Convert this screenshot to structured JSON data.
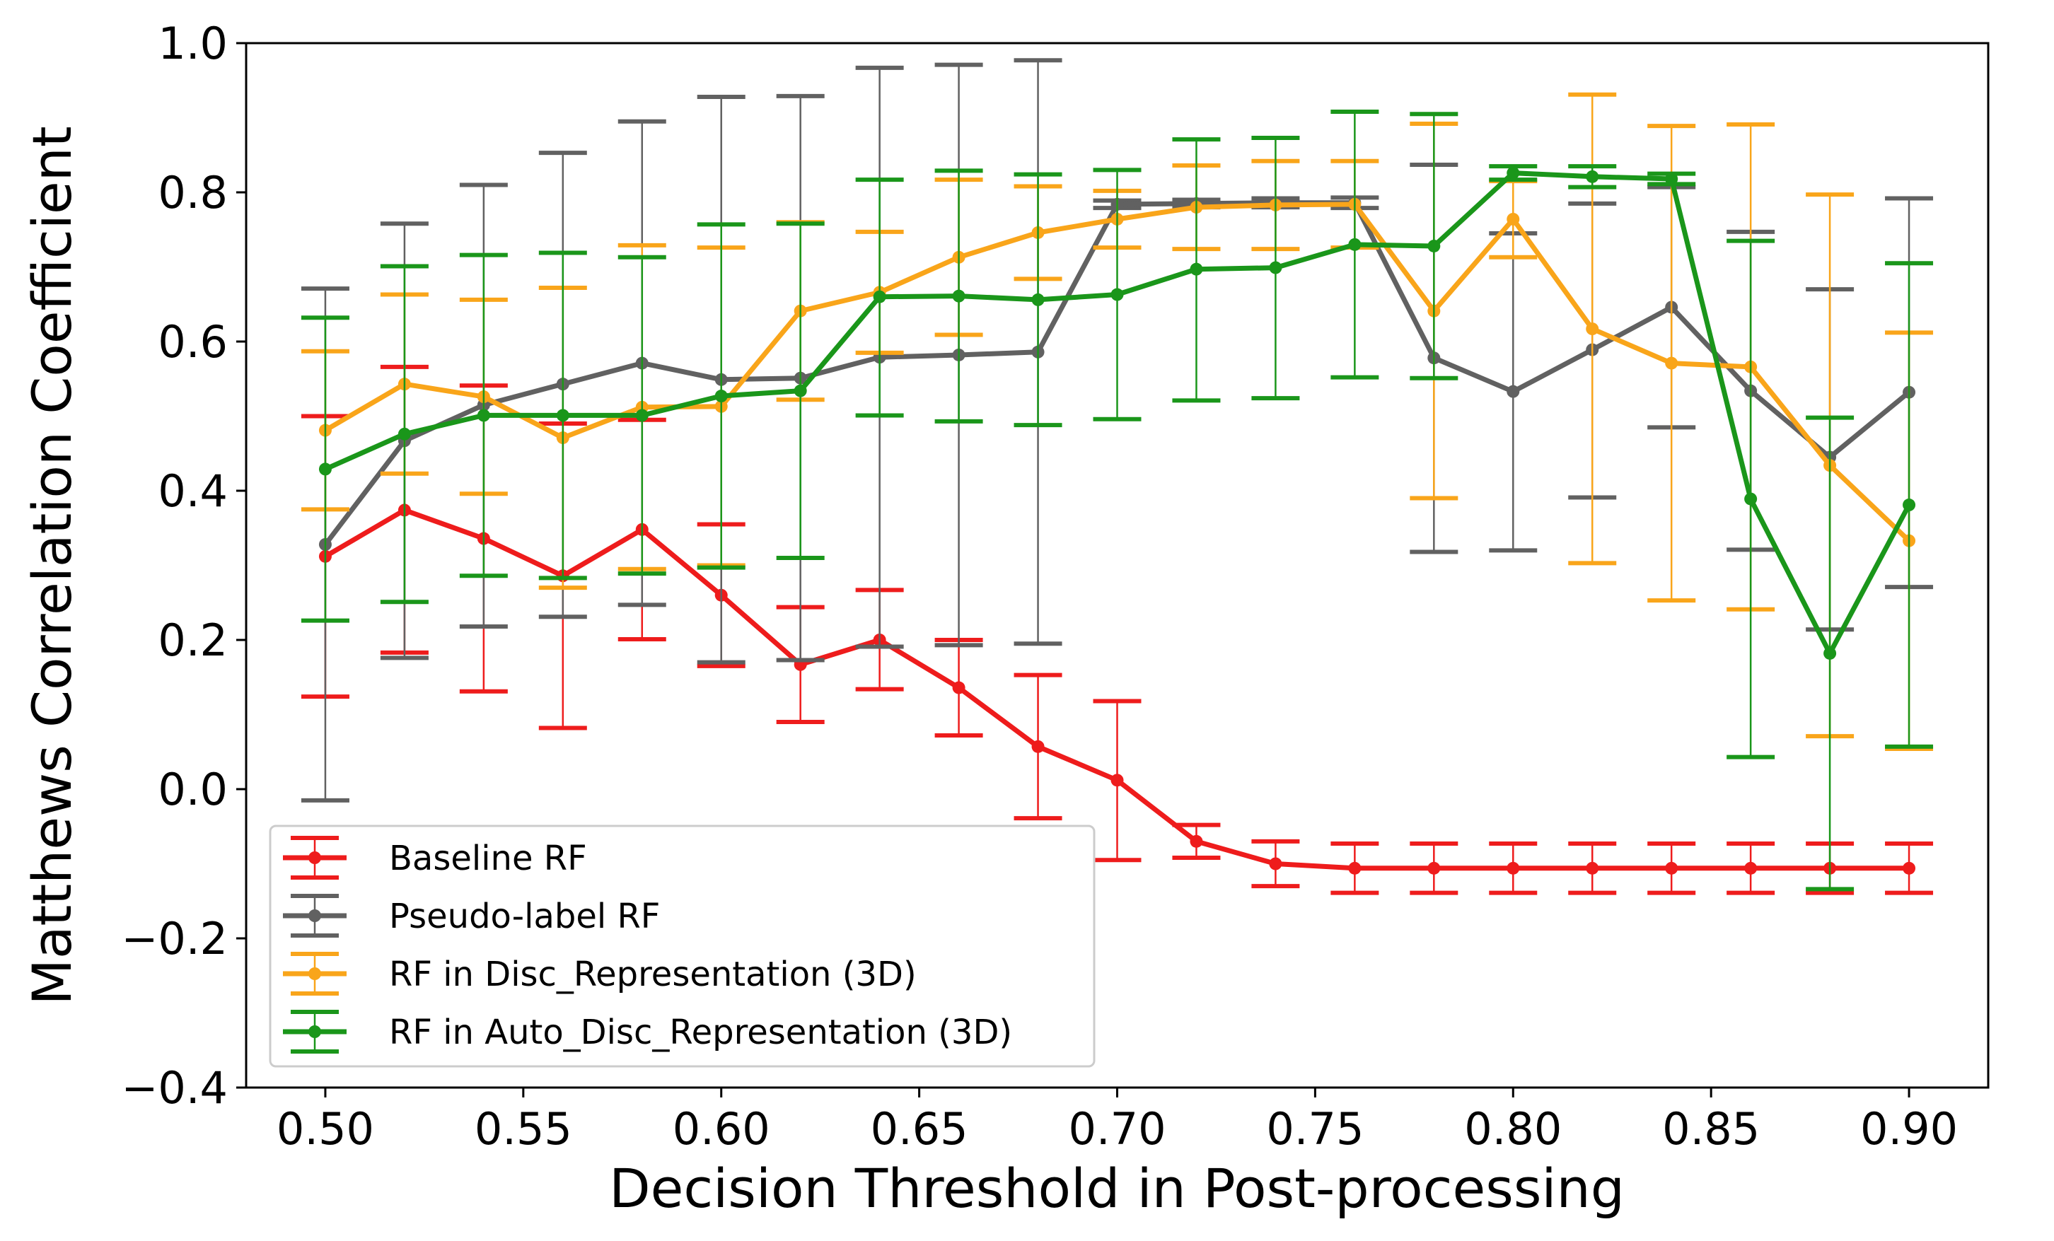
{
  "chart_data": {
    "type": "line",
    "title": "",
    "xlabel": "Decision Threshold in Post-processing",
    "ylabel": "Matthews Correlation Coefficient",
    "xlim": [
      0.48,
      0.92
    ],
    "ylim": [
      -0.4,
      1.0
    ],
    "x_ticks": [
      0.5,
      0.55,
      0.6,
      0.65,
      0.7,
      0.75,
      0.8,
      0.85,
      0.9
    ],
    "x_tick_labels": [
      "0.50",
      "0.55",
      "0.60",
      "0.65",
      "0.70",
      "0.75",
      "0.80",
      "0.85",
      "0.90"
    ],
    "y_ticks": [
      -0.4,
      -0.2,
      0.0,
      0.2,
      0.4,
      0.6,
      0.8,
      1.0
    ],
    "y_tick_labels": [
      "−0.4",
      "−0.2",
      "0.0",
      "0.2",
      "0.4",
      "0.6",
      "0.8",
      "1.0"
    ],
    "grid": false,
    "legend_position": "lower-left",
    "x": [
      0.5,
      0.52,
      0.54,
      0.56,
      0.58,
      0.6,
      0.62,
      0.64,
      0.66,
      0.68,
      0.7,
      0.72,
      0.74,
      0.76,
      0.78,
      0.8,
      0.82,
      0.84,
      0.86,
      0.88,
      0.9
    ],
    "series": [
      {
        "name": "Baseline RF",
        "color": "#ee1c1c",
        "values": [
          0.312,
          0.374,
          0.336,
          0.286,
          0.348,
          0.26,
          0.167,
          0.2,
          0.136,
          0.057,
          0.012,
          -0.07,
          -0.1,
          -0.106,
          -0.106,
          -0.106,
          -0.106,
          -0.106,
          -0.106,
          -0.106,
          -0.106
        ],
        "lower": [
          0.124,
          0.183,
          0.131,
          0.082,
          0.201,
          0.165,
          0.09,
          0.134,
          0.072,
          -0.039,
          -0.095,
          -0.092,
          -0.13,
          -0.139,
          -0.139,
          -0.139,
          -0.139,
          -0.139,
          -0.139,
          -0.139,
          -0.139
        ],
        "upper": [
          0.5,
          0.566,
          0.541,
          0.49,
          0.495,
          0.355,
          0.244,
          0.267,
          0.2,
          0.153,
          0.118,
          -0.048,
          -0.07,
          -0.073,
          -0.073,
          -0.073,
          -0.073,
          -0.073,
          -0.073,
          -0.073,
          -0.073
        ]
      },
      {
        "name": "Pseudo-label RF",
        "color": "#616161",
        "values": [
          0.328,
          0.467,
          0.515,
          0.543,
          0.571,
          0.549,
          0.551,
          0.579,
          0.582,
          0.586,
          0.784,
          0.785,
          0.786,
          0.786,
          0.578,
          0.533,
          0.589,
          0.646,
          0.534,
          0.445,
          0.532
        ],
        "lower": [
          -0.015,
          0.176,
          0.218,
          0.231,
          0.247,
          0.17,
          0.173,
          0.191,
          0.193,
          0.195,
          0.779,
          0.78,
          0.78,
          0.779,
          0.318,
          0.32,
          0.391,
          0.485,
          0.321,
          0.214,
          0.271
        ],
        "upper": [
          0.671,
          0.758,
          0.81,
          0.853,
          0.895,
          0.928,
          0.929,
          0.967,
          0.971,
          0.977,
          0.789,
          0.79,
          0.792,
          0.793,
          0.837,
          0.745,
          0.785,
          0.807,
          0.747,
          0.67,
          0.792
        ]
      },
      {
        "name": "RF in Disc_Representation (3D)",
        "color": "#f9a51a",
        "values": [
          0.481,
          0.543,
          0.526,
          0.471,
          0.512,
          0.513,
          0.641,
          0.666,
          0.713,
          0.746,
          0.764,
          0.78,
          0.783,
          0.784,
          0.641,
          0.764,
          0.617,
          0.571,
          0.566,
          0.434,
          0.333
        ],
        "lower": [
          0.375,
          0.423,
          0.396,
          0.27,
          0.295,
          0.3,
          0.522,
          0.585,
          0.609,
          0.684,
          0.726,
          0.724,
          0.724,
          0.726,
          0.39,
          0.713,
          0.303,
          0.253,
          0.241,
          0.071,
          0.054
        ],
        "upper": [
          0.587,
          0.663,
          0.656,
          0.672,
          0.729,
          0.726,
          0.76,
          0.747,
          0.817,
          0.808,
          0.802,
          0.836,
          0.842,
          0.842,
          0.892,
          0.815,
          0.931,
          0.889,
          0.891,
          0.797,
          0.612
        ]
      },
      {
        "name": "RF in Auto_Disc_Representation (3D)",
        "color": "#1a961a",
        "values": [
          0.429,
          0.476,
          0.501,
          0.501,
          0.501,
          0.527,
          0.534,
          0.66,
          0.661,
          0.656,
          0.663,
          0.697,
          0.699,
          0.73,
          0.728,
          0.826,
          0.821,
          0.818,
          0.389,
          0.182,
          0.381
        ],
        "lower": [
          0.226,
          0.251,
          0.286,
          0.283,
          0.289,
          0.297,
          0.31,
          0.501,
          0.493,
          0.488,
          0.496,
          0.521,
          0.524,
          0.552,
          0.551,
          0.817,
          0.807,
          0.811,
          0.043,
          -0.134,
          0.057
        ],
        "upper": [
          0.632,
          0.701,
          0.716,
          0.719,
          0.713,
          0.757,
          0.758,
          0.817,
          0.829,
          0.824,
          0.83,
          0.871,
          0.873,
          0.908,
          0.905,
          0.835,
          0.835,
          0.825,
          0.735,
          0.498,
          0.705
        ]
      }
    ]
  }
}
